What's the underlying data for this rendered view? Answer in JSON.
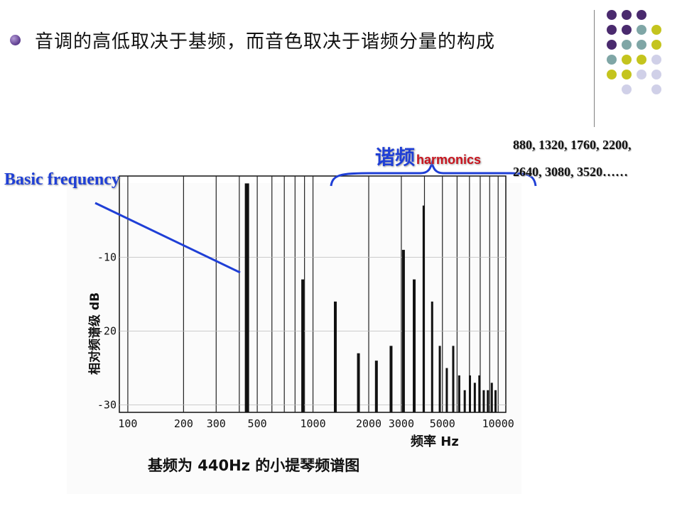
{
  "slide": {
    "bullet_text": "音调的高低取决于基频，而音色取决于谐频分量的构成"
  },
  "annotations": {
    "harmonics_cn": "谐频",
    "harmonics_en": "harmonics",
    "harmonic_list_line1": "880, 1320, 1760, 2200,",
    "harmonic_list_line2": "2640, 3080, 3520……",
    "basic_frequency": "Basic frequency"
  },
  "colors": {
    "accent_blue": "#1f3fd6",
    "accent_red": "#c8141e",
    "deco_purple": "#4a2a6e",
    "deco_teal": "#7fa6a6",
    "deco_yellow": "#c4c41e",
    "deco_lavender": "#d0d0e8"
  },
  "chart_data": {
    "type": "bar",
    "caption": "基频为 440Hz 的小提琴频谱图",
    "xlabel": "频率 Hz",
    "ylabel": "相对频谱级 dB",
    "x_scale": "log",
    "x_ticks": [
      100,
      200,
      300,
      500,
      1000,
      2000,
      3000,
      5000,
      10000
    ],
    "x_tick_labels": [
      "100",
      "200",
      "300",
      "500",
      "1000",
      "2000",
      "3000",
      "5000",
      "10000"
    ],
    "y_ticks": [
      -10,
      -20,
      -30
    ],
    "y_tick_labels": [
      "-10",
      "-20",
      "-30"
    ],
    "ylim": [
      -31,
      1
    ],
    "xlim": [
      90,
      11000
    ],
    "grid": true,
    "series": [
      {
        "x": [
          440,
          880,
          1320,
          1760,
          2200,
          2640,
          3080,
          3520,
          3960,
          4400,
          4840,
          5280,
          5720,
          6160,
          6600,
          7040,
          7480,
          7920,
          8360,
          8800,
          9240,
          9680
        ],
        "values": [
          0,
          -13,
          -16,
          -23,
          -24,
          -22,
          -9,
          -13,
          -3,
          -16,
          -22,
          -25,
          -22,
          -26,
          -28,
          -26,
          -27,
          -26,
          -28,
          -28,
          -27,
          -28
        ]
      }
    ]
  }
}
